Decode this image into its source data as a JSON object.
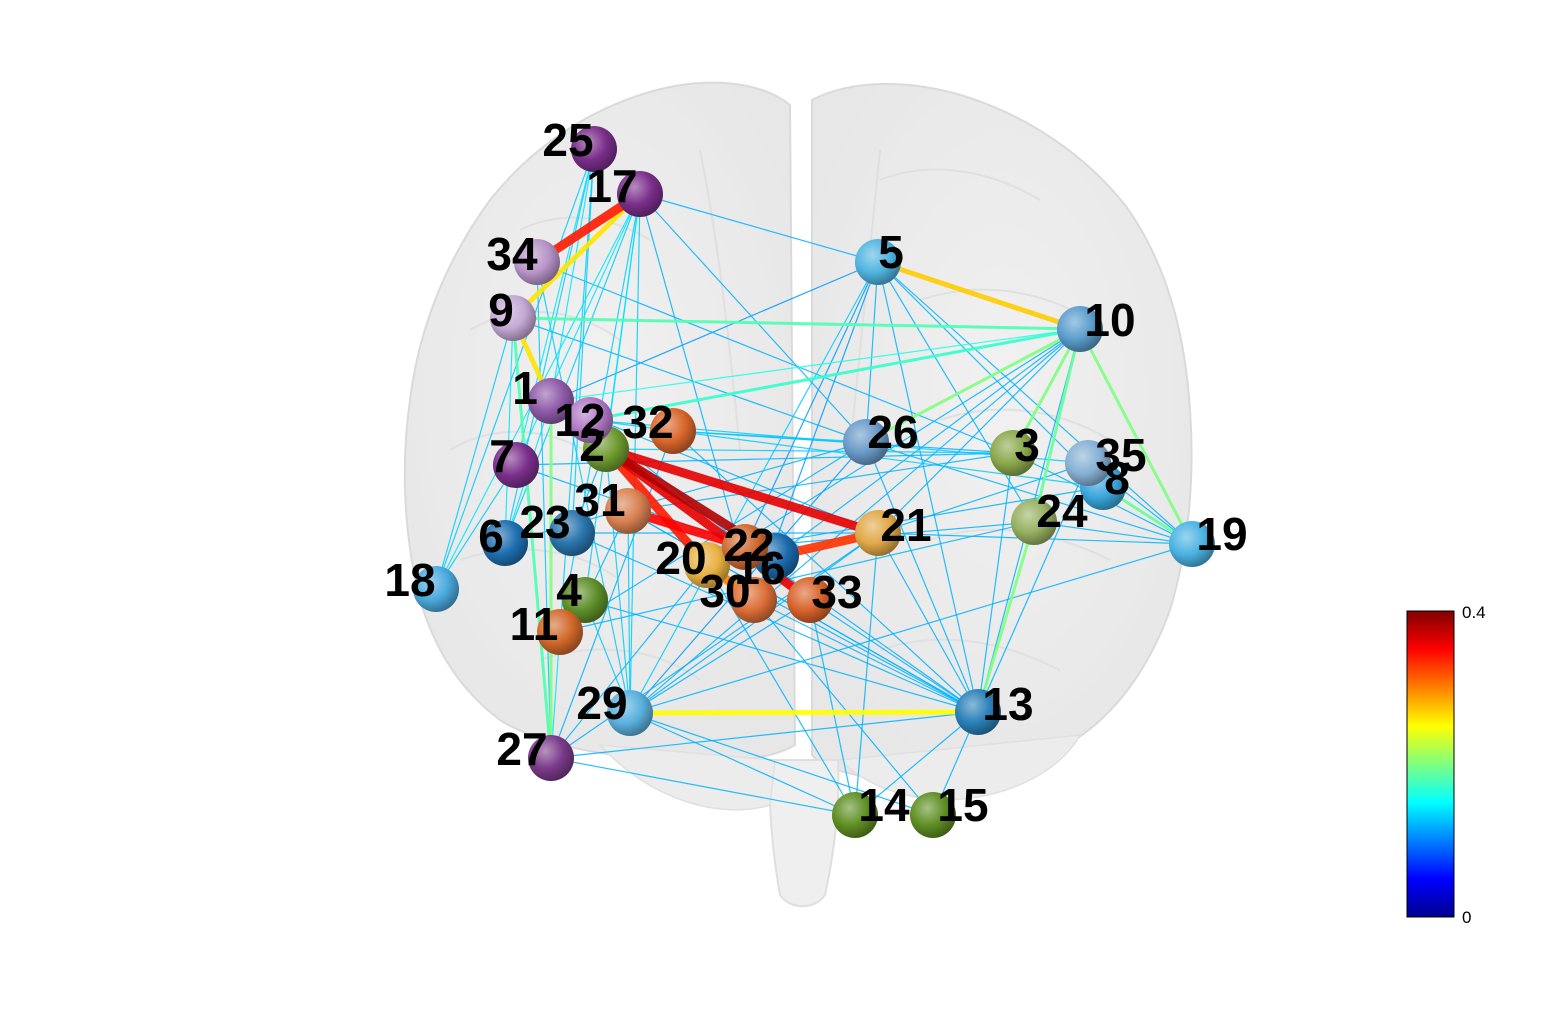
{
  "colorbar": {
    "max_label": "0.4",
    "min_label": "0",
    "stops": [
      "#00008f",
      "#0000ff",
      "#0080ff",
      "#00ffff",
      "#80ff80",
      "#ffff00",
      "#ff8000",
      "#ff0000",
      "#800000"
    ]
  },
  "nodes": [
    {
      "id": "1",
      "color": "#8e5aa8"
    },
    {
      "id": "2",
      "color": "#6e9a2e"
    },
    {
      "id": "3",
      "color": "#8aa84a"
    },
    {
      "id": "4",
      "color": "#5e8e2a"
    },
    {
      "id": "5",
      "color": "#4fb4e0"
    },
    {
      "id": "6",
      "color": "#1f6fb0"
    },
    {
      "id": "7",
      "color": "#7b2f8c"
    },
    {
      "id": "8",
      "color": "#3aa6dc"
    },
    {
      "id": "9",
      "color": "#c4a8d4"
    },
    {
      "id": "10",
      "color": "#5a9ccc"
    },
    {
      "id": "11",
      "color": "#d2682a"
    },
    {
      "id": "12",
      "color": "#b078c4"
    },
    {
      "id": "13",
      "color": "#2a80b8"
    },
    {
      "id": "14",
      "color": "#5e8e22"
    },
    {
      "id": "15",
      "color": "#5e8e22"
    },
    {
      "id": "16",
      "color": "#1a6aac"
    },
    {
      "id": "17",
      "color": "#7a2e8a"
    },
    {
      "id": "18",
      "color": "#4aaade"
    },
    {
      "id": "19",
      "color": "#4ab2e2"
    },
    {
      "id": "20",
      "color": "#e8b040"
    },
    {
      "id": "21",
      "color": "#e0a848"
    },
    {
      "id": "22",
      "color": "#d06a32"
    },
    {
      "id": "23",
      "color": "#2a74ac"
    },
    {
      "id": "24",
      "color": "#96b060"
    },
    {
      "id": "25",
      "color": "#7a2e8a"
    },
    {
      "id": "26",
      "color": "#6a9ac8"
    },
    {
      "id": "27",
      "color": "#7a3a8a"
    },
    {
      "id": "29",
      "color": "#5ab0de"
    },
    {
      "id": "30",
      "color": "#dc6e36"
    },
    {
      "id": "31",
      "color": "#d88050"
    },
    {
      "id": "32",
      "color": "#d8662a"
    },
    {
      "id": "33",
      "color": "#d8622a"
    },
    {
      "id": "34",
      "color": "#b894c8"
    },
    {
      "id": "35",
      "color": "#86b0d4"
    }
  ],
  "edges": [
    {
      "a": "17",
      "b": "34",
      "w": 0.34
    },
    {
      "a": "17",
      "b": "9",
      "w": 0.26
    },
    {
      "a": "9",
      "b": "1",
      "w": 0.26
    },
    {
      "a": "2",
      "b": "21",
      "w": 0.36
    },
    {
      "a": "2",
      "b": "16",
      "w": 0.38
    },
    {
      "a": "2",
      "b": "33",
      "w": 0.36
    },
    {
      "a": "31",
      "b": "16",
      "w": 0.35
    },
    {
      "a": "2",
      "b": "20",
      "w": 0.34
    },
    {
      "a": "20",
      "b": "30",
      "w": 0.3
    },
    {
      "a": "16",
      "b": "21",
      "w": 0.33
    },
    {
      "a": "5",
      "b": "10",
      "w": 0.27
    },
    {
      "a": "29",
      "b": "13",
      "w": 0.25
    },
    {
      "a": "10",
      "b": "19",
      "w": 0.2
    },
    {
      "a": "10",
      "b": "3",
      "w": 0.2
    },
    {
      "a": "10",
      "b": "26",
      "w": 0.2
    },
    {
      "a": "10",
      "b": "24",
      "w": 0.19
    },
    {
      "a": "24",
      "b": "13",
      "w": 0.2
    },
    {
      "a": "1",
      "b": "27",
      "w": 0.2
    },
    {
      "a": "9",
      "b": "27",
      "w": 0.18
    },
    {
      "a": "8",
      "b": "19",
      "w": 0.19
    },
    {
      "a": "5",
      "b": "13",
      "w": 0.12
    },
    {
      "a": "10",
      "b": "12",
      "w": 0.17
    },
    {
      "a": "10",
      "b": "9",
      "w": 0.18
    },
    {
      "a": "10",
      "b": "1",
      "w": 0.16
    },
    {
      "a": "17",
      "b": "5",
      "w": 0.12
    },
    {
      "a": "17",
      "b": "29",
      "w": 0.13
    },
    {
      "a": "17",
      "b": "4",
      "w": 0.13
    },
    {
      "a": "17",
      "b": "6",
      "w": 0.13
    },
    {
      "a": "17",
      "b": "18",
      "w": 0.14
    },
    {
      "a": "17",
      "b": "11",
      "w": 0.13
    },
    {
      "a": "17",
      "b": "26",
      "w": 0.12
    },
    {
      "a": "17",
      "b": "30",
      "w": 0.12
    },
    {
      "a": "17",
      "b": "7",
      "w": 0.14
    },
    {
      "a": "25",
      "b": "7",
      "w": 0.14
    },
    {
      "a": "25",
      "b": "6",
      "w": 0.13
    },
    {
      "a": "25",
      "b": "23",
      "w": 0.13
    },
    {
      "a": "25",
      "b": "11",
      "w": 0.13
    },
    {
      "a": "25",
      "b": "1",
      "w": 0.14
    },
    {
      "a": "25",
      "b": "18",
      "w": 0.13
    },
    {
      "a": "34",
      "b": "29",
      "w": 0.13
    },
    {
      "a": "34",
      "b": "3",
      "w": 0.12
    },
    {
      "a": "9",
      "b": "26",
      "w": 0.12
    },
    {
      "a": "9",
      "b": "6",
      "w": 0.14
    },
    {
      "a": "1",
      "b": "6",
      "w": 0.14
    },
    {
      "a": "7",
      "b": "18",
      "w": 0.13
    },
    {
      "a": "12",
      "b": "8",
      "w": 0.13
    },
    {
      "a": "12",
      "b": "35",
      "w": 0.13
    },
    {
      "a": "2",
      "b": "3",
      "w": 0.13
    },
    {
      "a": "5",
      "b": "29",
      "w": 0.13
    },
    {
      "a": "5",
      "b": "8",
      "w": 0.12
    },
    {
      "a": "5",
      "b": "24",
      "w": 0.12
    },
    {
      "a": "5",
      "b": "19",
      "w": 0.12
    },
    {
      "a": "5",
      "b": "30",
      "w": 0.11
    },
    {
      "a": "5",
      "b": "1",
      "w": 0.11
    },
    {
      "a": "10",
      "b": "13",
      "w": 0.12
    },
    {
      "a": "10",
      "b": "21",
      "w": 0.12
    },
    {
      "a": "10",
      "b": "29",
      "w": 0.12
    },
    {
      "a": "3",
      "b": "7",
      "w": 0.12
    },
    {
      "a": "3",
      "b": "13",
      "w": 0.12
    },
    {
      "a": "26",
      "b": "29",
      "w": 0.11
    },
    {
      "a": "26",
      "b": "13",
      "w": 0.12
    },
    {
      "a": "26",
      "b": "19",
      "w": 0.12
    },
    {
      "a": "26",
      "b": "11",
      "w": 0.12
    },
    {
      "a": "21",
      "b": "14",
      "w": 0.12
    },
    {
      "a": "21",
      "b": "27",
      "w": 0.12
    },
    {
      "a": "24",
      "b": "11",
      "w": 0.12
    },
    {
      "a": "24",
      "b": "22",
      "w": 0.12
    },
    {
      "a": "19",
      "b": "29",
      "w": 0.12
    },
    {
      "a": "19",
      "b": "21",
      "w": 0.12
    },
    {
      "a": "35",
      "b": "21",
      "w": 0.12
    },
    {
      "a": "35",
      "b": "13",
      "w": 0.12
    },
    {
      "a": "8",
      "b": "22",
      "w": 0.12
    },
    {
      "a": "13",
      "b": "27",
      "w": 0.12
    },
    {
      "a": "13",
      "b": "4",
      "w": 0.12
    },
    {
      "a": "13",
      "b": "31",
      "w": 0.12
    },
    {
      "a": "13",
      "b": "32",
      "w": 0.12
    },
    {
      "a": "13",
      "b": "22",
      "w": 0.12
    },
    {
      "a": "13",
      "b": "20",
      "w": 0.12
    },
    {
      "a": "29",
      "b": "14",
      "w": 0.12
    },
    {
      "a": "29",
      "b": "15",
      "w": 0.12
    },
    {
      "a": "29",
      "b": "33",
      "w": 0.12
    },
    {
      "a": "29",
      "b": "21",
      "w": 0.12
    },
    {
      "a": "27",
      "b": "14",
      "w": 0.12
    },
    {
      "a": "27",
      "b": "32",
      "w": 0.12
    },
    {
      "a": "15",
      "b": "30",
      "w": 0.12
    },
    {
      "a": "14",
      "b": "20",
      "w": 0.12
    },
    {
      "a": "14",
      "b": "33",
      "w": 0.12
    },
    {
      "a": "23",
      "b": "21",
      "w": 0.12
    },
    {
      "a": "23",
      "b": "13",
      "w": 0.12
    },
    {
      "a": "6",
      "b": "26",
      "w": 0.12
    },
    {
      "a": "7",
      "b": "16",
      "w": 0.12
    },
    {
      "a": "12",
      "b": "22",
      "w": 0.12
    },
    {
      "a": "4",
      "b": "29",
      "w": 0.13
    },
    {
      "a": "11",
      "b": "27",
      "w": 0.14
    },
    {
      "a": "31",
      "b": "29",
      "w": 0.13
    },
    {
      "a": "32",
      "b": "26",
      "w": 0.13
    },
    {
      "a": "32",
      "b": "3",
      "w": 0.12
    },
    {
      "a": "1",
      "b": "21",
      "w": 0.12
    },
    {
      "a": "18",
      "b": "9",
      "w": 0.13
    },
    {
      "a": "33",
      "b": "13",
      "w": 0.12
    },
    {
      "a": "16",
      "b": "10",
      "w": 0.12
    },
    {
      "a": "22",
      "b": "5",
      "w": 0.11
    },
    {
      "a": "20",
      "b": "10",
      "w": 0.12
    },
    {
      "a": "30",
      "b": "13",
      "w": 0.12
    },
    {
      "a": "31",
      "b": "3",
      "w": 0.12
    },
    {
      "a": "2",
      "b": "29",
      "w": 0.13
    },
    {
      "a": "17",
      "b": "2",
      "w": 0.14
    },
    {
      "a": "34",
      "b": "27",
      "w": 0.13
    },
    {
      "a": "5",
      "b": "26",
      "w": 0.12
    },
    {
      "a": "24",
      "b": "19",
      "w": 0.12
    },
    {
      "a": "3",
      "b": "19",
      "w": 0.12
    },
    {
      "a": "35",
      "b": "19",
      "w": 0.12
    },
    {
      "a": "21",
      "b": "13",
      "w": 0.12
    },
    {
      "a": "31",
      "b": "13",
      "w": 0.12
    },
    {
      "a": "4",
      "b": "31",
      "w": 0.12
    },
    {
      "a": "23",
      "b": "2",
      "w": 0.12
    },
    {
      "a": "27",
      "b": "20",
      "w": 0.12
    },
    {
      "a": "15",
      "b": "13",
      "w": 0.12
    },
    {
      "a": "14",
      "b": "13",
      "w": 0.12
    }
  ]
}
